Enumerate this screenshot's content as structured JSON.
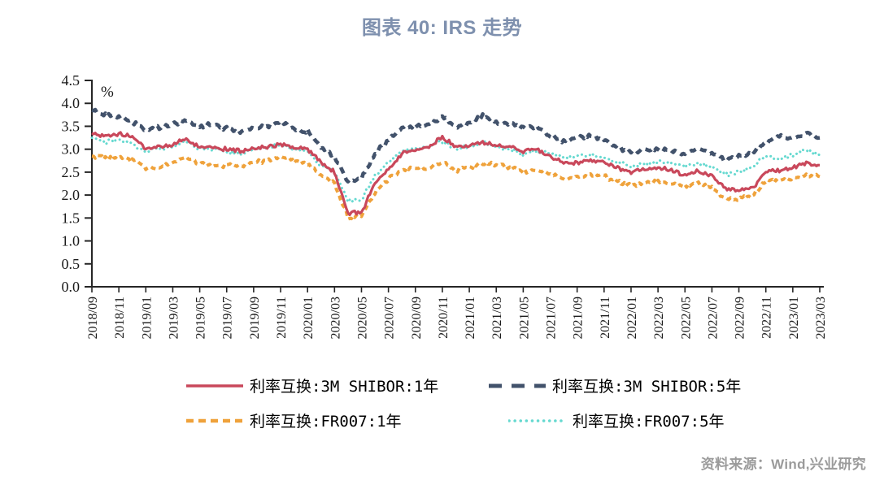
{
  "title": "图表 40: IRS 走势",
  "source_note": "资料来源：Wind,兴业研究",
  "colors": {
    "title": "#7E90AE",
    "source": "#9B9B9B",
    "axis": "#262626",
    "legend_text": "#000000"
  },
  "chart_data": {
    "type": "line",
    "title": "图表 40: IRS 走势",
    "unit_label": "%",
    "ylim": [
      0.0,
      4.5
    ],
    "ytick_step": 0.5,
    "yticks": [
      0.0,
      0.5,
      1.0,
      1.5,
      2.0,
      2.5,
      3.0,
      3.5,
      4.0,
      4.5
    ],
    "xtick_every": 2,
    "grid": false,
    "legend_position": "bottom",
    "x": [
      "2018/09",
      "2018/10",
      "2018/11",
      "2018/12",
      "2019/01",
      "2019/02",
      "2019/03",
      "2019/04",
      "2019/05",
      "2019/06",
      "2019/07",
      "2019/08",
      "2019/09",
      "2019/10",
      "2019/11",
      "2019/12",
      "2020/01",
      "2020/02",
      "2020/03",
      "2020/04",
      "2020/05",
      "2020/06",
      "2020/07",
      "2020/08",
      "2020/09",
      "2020/10",
      "2020/11",
      "2020/12",
      "2021/01",
      "2021/02",
      "2021/03",
      "2021/04",
      "2021/05",
      "2021/06",
      "2021/07",
      "2021/08",
      "2021/09",
      "2021/10",
      "2021/11",
      "2021/12",
      "2022/01",
      "2022/02",
      "2022/03",
      "2022/04",
      "2022/05",
      "2022/06",
      "2022/07",
      "2022/08",
      "2022/09",
      "2022/10",
      "2022/11",
      "2022/12",
      "2023/01",
      "2023/02",
      "2023/03"
    ],
    "series": [
      {
        "name": "利率互换:3M SHIBOR:1年",
        "color": "#C9485B",
        "style": "solid",
        "values": [
          3.35,
          3.28,
          3.33,
          3.28,
          3.0,
          3.05,
          3.1,
          3.22,
          3.05,
          3.05,
          3.0,
          2.95,
          3.0,
          3.05,
          3.1,
          3.05,
          3.0,
          2.7,
          2.5,
          1.6,
          1.62,
          2.25,
          2.55,
          2.9,
          3.0,
          3.05,
          3.28,
          3.05,
          3.1,
          3.15,
          3.1,
          3.05,
          2.95,
          3.0,
          2.85,
          2.7,
          2.72,
          2.75,
          2.7,
          2.6,
          2.5,
          2.56,
          2.6,
          2.55,
          2.45,
          2.52,
          2.42,
          2.15,
          2.1,
          2.15,
          2.5,
          2.55,
          2.6,
          2.7,
          2.65
        ]
      },
      {
        "name": "利率互换:3M SHIBOR:5年",
        "color": "#42526B",
        "style": "long-dash",
        "values": [
          3.85,
          3.75,
          3.72,
          3.6,
          3.42,
          3.48,
          3.55,
          3.62,
          3.5,
          3.55,
          3.45,
          3.38,
          3.45,
          3.5,
          3.6,
          3.45,
          3.4,
          3.05,
          2.85,
          2.3,
          2.35,
          2.9,
          3.2,
          3.45,
          3.5,
          3.55,
          3.7,
          3.5,
          3.55,
          3.72,
          3.6,
          3.55,
          3.45,
          3.5,
          3.3,
          3.18,
          3.25,
          3.28,
          3.2,
          3.05,
          2.92,
          3.0,
          3.0,
          2.98,
          2.9,
          3.0,
          2.92,
          2.78,
          2.85,
          2.92,
          3.15,
          3.28,
          3.22,
          3.35,
          3.25
        ]
      },
      {
        "name": "利率互换:FR007:1年",
        "color": "#EFA23B",
        "style": "dash",
        "values": [
          2.85,
          2.8,
          2.8,
          2.76,
          2.6,
          2.6,
          2.7,
          2.82,
          2.7,
          2.65,
          2.65,
          2.65,
          2.7,
          2.75,
          2.85,
          2.75,
          2.7,
          2.42,
          2.25,
          1.5,
          1.55,
          2.05,
          2.35,
          2.55,
          2.6,
          2.6,
          2.7,
          2.55,
          2.6,
          2.7,
          2.65,
          2.6,
          2.5,
          2.55,
          2.45,
          2.35,
          2.4,
          2.45,
          2.4,
          2.3,
          2.2,
          2.26,
          2.3,
          2.26,
          2.2,
          2.26,
          2.15,
          1.92,
          1.9,
          2.0,
          2.3,
          2.3,
          2.35,
          2.42,
          2.4
        ]
      },
      {
        "name": "利率互换:FR007:5年",
        "color": "#66D9D0",
        "style": "dot",
        "values": [
          3.25,
          3.15,
          3.2,
          3.12,
          2.95,
          3.0,
          3.05,
          3.18,
          3.0,
          3.0,
          2.95,
          2.9,
          3.0,
          3.05,
          3.1,
          3.0,
          2.95,
          2.65,
          2.5,
          1.85,
          1.9,
          2.42,
          2.7,
          2.95,
          3.0,
          3.05,
          3.18,
          3.0,
          3.05,
          3.15,
          3.05,
          3.0,
          2.9,
          2.95,
          2.9,
          2.82,
          2.85,
          2.88,
          2.82,
          2.72,
          2.62,
          2.68,
          2.72,
          2.68,
          2.62,
          2.7,
          2.62,
          2.45,
          2.5,
          2.6,
          2.85,
          2.8,
          2.88,
          2.98,
          2.88
        ]
      }
    ]
  }
}
